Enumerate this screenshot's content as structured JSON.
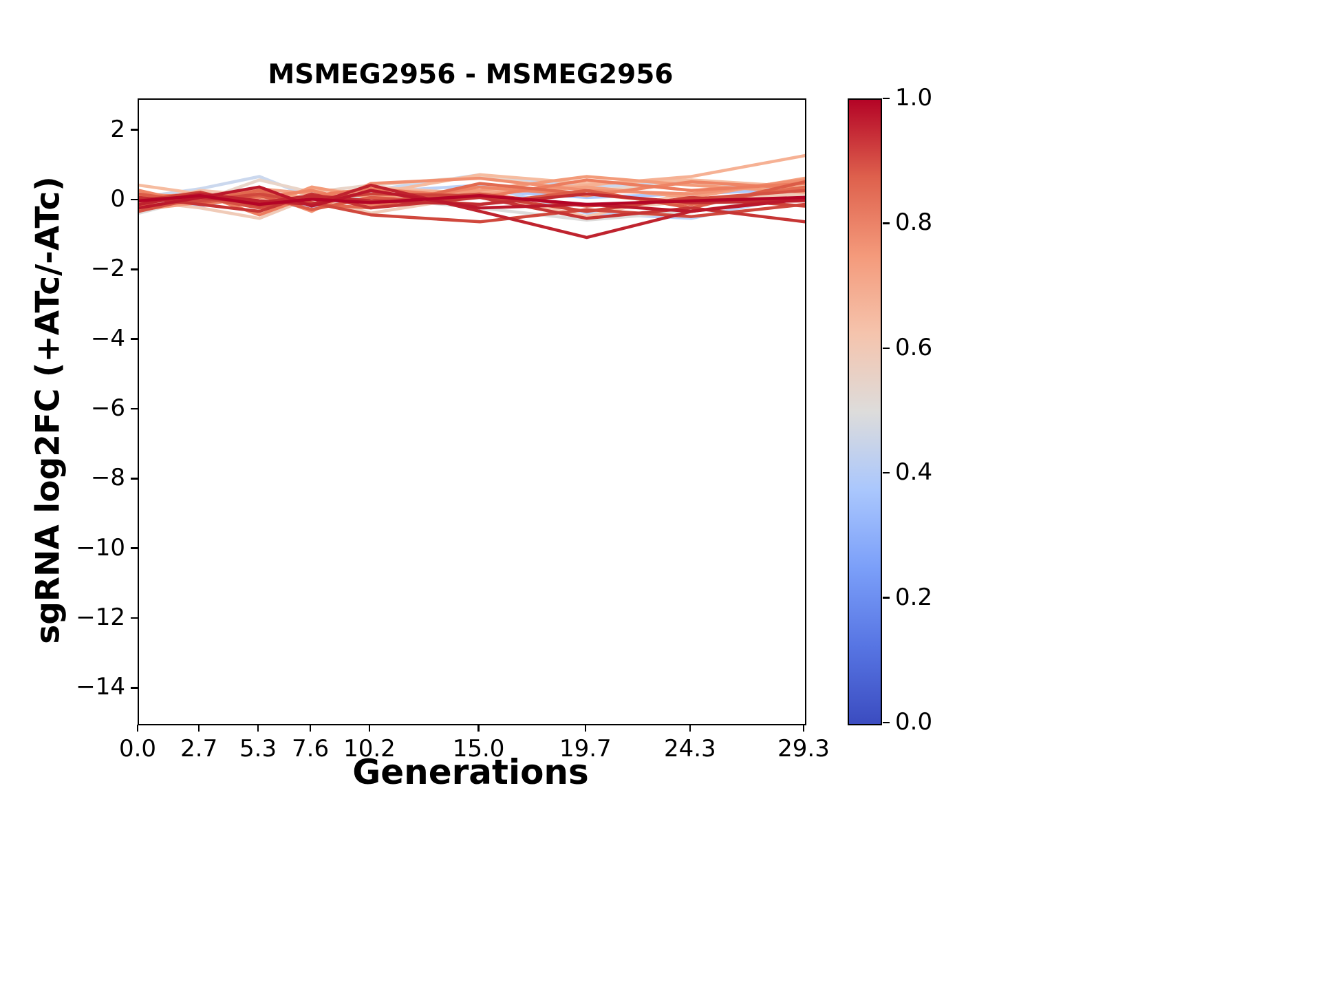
{
  "figure": {
    "title": "MSMEG2956 - MSMEG2956",
    "xlabel": "Generations",
    "ylabel": "sgRNA log2FC (+ATc/-ATc)"
  },
  "chart_data": {
    "type": "line",
    "title": "MSMEG2956 - MSMEG2956",
    "xlabel": "Generations",
    "ylabel": "sgRNA log2FC (+ATc/-ATc)",
    "grid": false,
    "legend": "none",
    "x": [
      0.0,
      2.7,
      5.3,
      7.6,
      10.2,
      15.0,
      19.7,
      24.3,
      29.3
    ],
    "xlim": [
      0.0,
      29.3
    ],
    "ylim": [
      -15.0,
      2.9
    ],
    "xtick_values": [
      0.0,
      2.7,
      5.3,
      7.6,
      10.2,
      15.0,
      19.7,
      24.3,
      29.3
    ],
    "xtick_labels": [
      "0.0",
      "2.7",
      "5.3",
      "7.6",
      "10.2",
      "15.0",
      "19.7",
      "24.3",
      "29.3"
    ],
    "ytick_values": [
      2,
      0,
      -2,
      -4,
      -6,
      -8,
      -10,
      -12,
      -14
    ],
    "ytick_labels": [
      "2",
      "0",
      "−2",
      "−4",
      "−6",
      "−8",
      "−10",
      "−12",
      "−14"
    ],
    "line_width": 4.5,
    "series": [
      {
        "c": 0.4,
        "color": "#aec9fd",
        "values": [
          0.25,
          -0.15,
          0.2,
          0.05,
          -0.1,
          0.3,
          0.1,
          0.2,
          0.35
        ]
      },
      {
        "c": 0.42,
        "color": "#bed2f6",
        "values": [
          -0.3,
          0.15,
          0.0,
          -0.2,
          0.25,
          0.45,
          -0.35,
          -0.5,
          0.2
        ]
      },
      {
        "c": 0.45,
        "color": "#cbd8ee",
        "values": [
          0.1,
          0.35,
          0.7,
          0.1,
          0.3,
          0.75,
          0.4,
          0.55,
          0.3
        ]
      },
      {
        "c": 0.5,
        "color": "#dddcdb",
        "values": [
          -0.35,
          0.1,
          -0.1,
          0.2,
          0.1,
          -0.2,
          -0.55,
          -0.3,
          0.15
        ]
      },
      {
        "c": 0.55,
        "color": "#e9d5c9",
        "values": [
          0.2,
          0.0,
          0.6,
          0.25,
          0.45,
          0.7,
          0.3,
          0.5,
          0.45
        ]
      },
      {
        "c": 0.58,
        "color": "#f0cbb8",
        "values": [
          0.0,
          -0.2,
          -0.5,
          0.1,
          -0.35,
          0.15,
          -0.3,
          0.0,
          0.2
        ]
      },
      {
        "c": 0.6,
        "color": "#f5c4ad",
        "values": [
          -0.1,
          0.3,
          0.15,
          0.0,
          0.4,
          0.2,
          -0.45,
          0.25,
          0.5
        ]
      },
      {
        "c": 0.62,
        "color": "#f6bca0",
        "values": [
          0.45,
          0.2,
          0.0,
          0.35,
          0.2,
          0.75,
          0.5,
          0.6,
          0.4
        ]
      },
      {
        "c": 0.65,
        "color": "#f6b194",
        "values": [
          0.15,
          0.05,
          0.2,
          0.1,
          0.3,
          0.25,
          0.45,
          0.7,
          1.3
        ]
      },
      {
        "c": 0.7,
        "color": "#f4a181",
        "values": [
          -0.25,
          -0.05,
          0.35,
          0.2,
          -0.15,
          0.2,
          0.4,
          0.1,
          0.65
        ]
      },
      {
        "c": 0.72,
        "color": "#f39b7a",
        "values": [
          0.2,
          0.1,
          -0.2,
          0.4,
          0.1,
          0.3,
          0.7,
          0.45,
          0.25
        ]
      },
      {
        "c": 0.75,
        "color": "#f19071",
        "values": [
          -0.05,
          0.15,
          0.25,
          -0.3,
          0.5,
          0.65,
          0.3,
          0.2,
          0.6
        ]
      },
      {
        "c": 0.78,
        "color": "#ee8566",
        "values": [
          0.3,
          -0.1,
          0.1,
          0.3,
          -0.1,
          0.4,
          0.15,
          0.55,
          0.35
        ]
      },
      {
        "c": 0.8,
        "color": "#ec7d5f",
        "values": [
          0.1,
          0.2,
          -0.4,
          0.15,
          0.35,
          0.1,
          0.6,
          0.3,
          0.5
        ]
      },
      {
        "c": 0.85,
        "color": "#e26a50",
        "values": [
          -0.15,
          0.0,
          0.3,
          -0.1,
          -0.2,
          0.5,
          0.2,
          -0.1,
          0.4
        ]
      },
      {
        "c": 0.88,
        "color": "#db5c47",
        "values": [
          0.2,
          -0.05,
          0.15,
          -0.25,
          0.1,
          -0.1,
          0.3,
          -0.2,
          0.55
        ]
      },
      {
        "c": 0.9,
        "color": "#d55142",
        "values": [
          -0.3,
          0.1,
          -0.2,
          0.1,
          0.0,
          0.2,
          -0.15,
          0.05,
          0.3
        ]
      },
      {
        "c": 0.92,
        "color": "#d0483d",
        "values": [
          0.05,
          0.0,
          0.2,
          -0.05,
          -0.4,
          -0.6,
          -0.25,
          -0.45,
          -0.1
        ]
      },
      {
        "c": 0.93,
        "color": "#cd4339",
        "values": [
          0.0,
          0.25,
          -0.15,
          0.05,
          0.2,
          0.15,
          -0.3,
          0.1,
          -0.15
        ]
      },
      {
        "c": 0.95,
        "color": "#c63534",
        "values": [
          0.1,
          -0.1,
          -0.3,
          0.2,
          -0.2,
          0.1,
          -0.5,
          -0.2,
          -0.6
        ]
      },
      {
        "c": 0.96,
        "color": "#c22c31",
        "values": [
          0.05,
          0.1,
          -0.05,
          0.15,
          0.0,
          -0.1,
          0.2,
          -0.05,
          0.0
        ]
      },
      {
        "c": 0.97,
        "color": "#bf232e",
        "values": [
          -0.1,
          0.2,
          0.0,
          -0.1,
          0.45,
          -0.3,
          -1.05,
          -0.3,
          0.1
        ]
      },
      {
        "c": 0.98,
        "color": "#bb182b",
        "values": [
          -0.2,
          0.1,
          0.4,
          -0.15,
          0.3,
          -0.2,
          -0.1,
          -0.3,
          0.05
        ]
      },
      {
        "c": 1.0,
        "color": "#b40426",
        "values": [
          0.0,
          0.15,
          -0.1,
          0.05,
          -0.05,
          0.15,
          -0.1,
          0.0,
          0.1
        ]
      }
    ],
    "colorbar": {
      "colormap": "coolwarm",
      "min": 0.0,
      "max": 1.0,
      "tick_values": [
        1.0,
        0.8,
        0.6,
        0.4,
        0.2,
        0.0
      ],
      "tick_labels": [
        "1.0",
        "0.8",
        "0.6",
        "0.4",
        "0.2",
        "0.0"
      ],
      "gradient_stops_bottom_to_top": [
        "#3b4cc0",
        "#5775e3",
        "#7b9ff9",
        "#aac7fd",
        "#dddcdb",
        "#f5c4ad",
        "#f49a7b",
        "#de614d",
        "#b40426"
      ]
    }
  }
}
